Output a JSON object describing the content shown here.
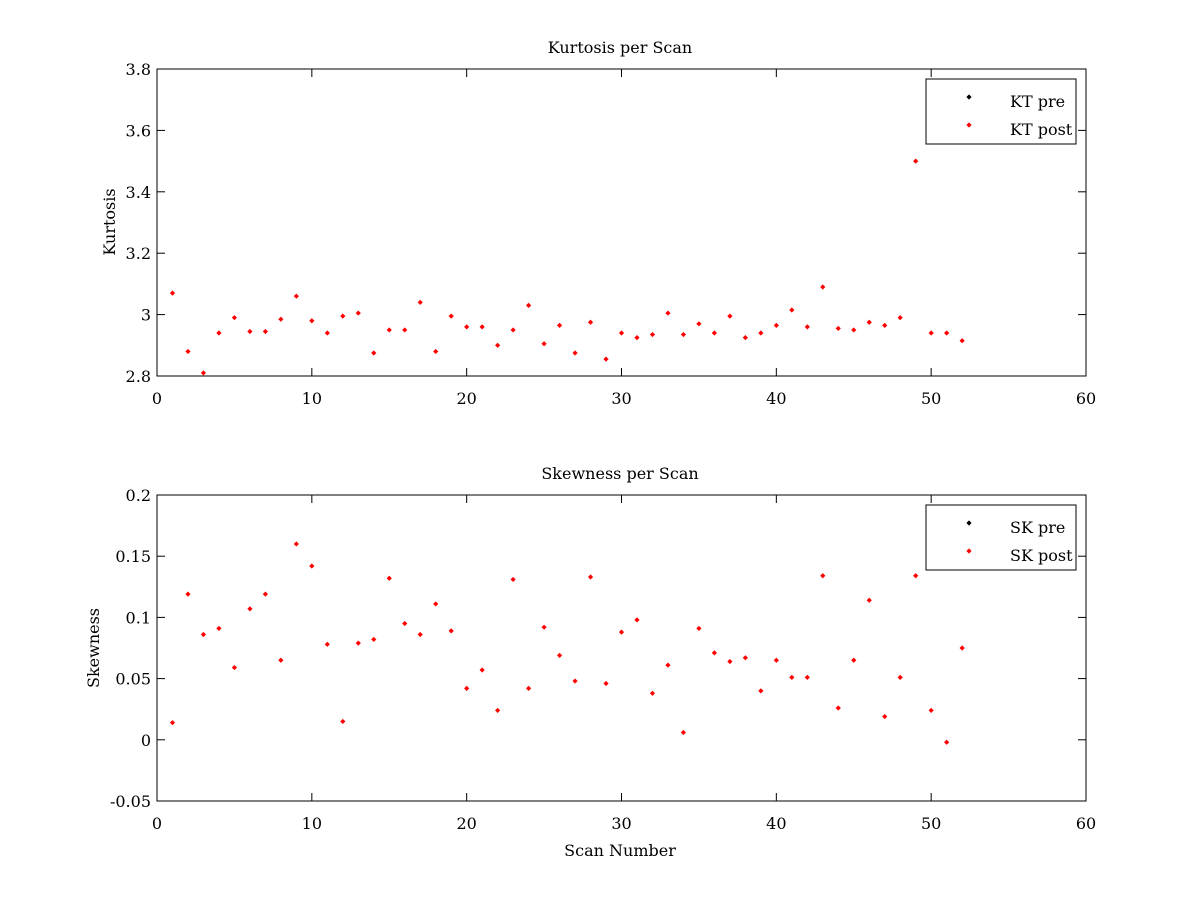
{
  "colors": {
    "pre": "#000000",
    "post": "#ff0000",
    "axes": "#000000",
    "background": "#ffffff"
  },
  "chart_data": [
    {
      "type": "scatter",
      "title": "Kurtosis per Scan",
      "xlabel": "",
      "ylabel": "Kurtosis",
      "xlim": [
        0,
        60
      ],
      "ylim": [
        2.8,
        3.8
      ],
      "xticks": [
        0,
        10,
        20,
        30,
        40,
        50,
        60
      ],
      "yticks": [
        2.8,
        3,
        3.2,
        3.4,
        3.6,
        3.8
      ],
      "xtick_labels": [
        "0",
        "10",
        "20",
        "30",
        "40",
        "50",
        "60"
      ],
      "ytick_labels": [
        "2.8",
        "3",
        "3.2",
        "3.4",
        "3.6",
        "3.8"
      ],
      "grid": false,
      "legend_position": "top-right",
      "legend": [
        "KT pre",
        "KT post"
      ],
      "series": [
        {
          "name": "KT pre",
          "x": [],
          "values": []
        },
        {
          "name": "KT post",
          "x": [
            1,
            2,
            3,
            4,
            5,
            6,
            7,
            8,
            9,
            10,
            11,
            12,
            13,
            14,
            15,
            16,
            17,
            18,
            19,
            20,
            21,
            22,
            23,
            24,
            25,
            26,
            27,
            28,
            29,
            30,
            31,
            32,
            33,
            34,
            35,
            36,
            37,
            38,
            39,
            40,
            41,
            42,
            43,
            44,
            45,
            46,
            47,
            48,
            49,
            50,
            51,
            52
          ],
          "values": [
            3.07,
            2.88,
            2.81,
            2.94,
            2.99,
            2.945,
            2.945,
            2.985,
            3.06,
            2.98,
            2.94,
            2.995,
            3.005,
            2.875,
            2.95,
            2.95,
            3.04,
            2.88,
            2.995,
            2.96,
            2.96,
            2.9,
            2.95,
            3.03,
            2.905,
            2.965,
            2.875,
            2.975,
            2.855,
            2.94,
            2.925,
            2.935,
            3.005,
            2.935,
            2.97,
            2.94,
            2.995,
            2.925,
            2.94,
            2.965,
            3.015,
            2.96,
            3.09,
            2.955,
            2.95,
            2.975,
            2.965,
            2.99,
            3.5,
            2.94,
            2.94,
            2.915
          ]
        }
      ]
    },
    {
      "type": "scatter",
      "title": "Skewness per Scan",
      "xlabel": "Scan Number",
      "ylabel": "Skewness",
      "xlim": [
        0,
        60
      ],
      "ylim": [
        -0.05,
        0.2
      ],
      "xticks": [
        0,
        10,
        20,
        30,
        40,
        50,
        60
      ],
      "yticks": [
        -0.05,
        0,
        0.05,
        0.1,
        0.15,
        0.2
      ],
      "xtick_labels": [
        "0",
        "10",
        "20",
        "30",
        "40",
        "50",
        "60"
      ],
      "ytick_labels": [
        "-0.05",
        "0",
        "0.05",
        "0.1",
        "0.15",
        "0.2"
      ],
      "grid": false,
      "legend_position": "top-right",
      "legend": [
        "SK pre",
        "SK post"
      ],
      "series": [
        {
          "name": "SK pre",
          "x": [],
          "values": []
        },
        {
          "name": "SK post",
          "x": [
            1,
            2,
            3,
            4,
            5,
            6,
            7,
            8,
            9,
            10,
            11,
            12,
            13,
            14,
            15,
            16,
            17,
            18,
            19,
            20,
            21,
            22,
            23,
            24,
            25,
            26,
            27,
            28,
            29,
            30,
            31,
            32,
            33,
            34,
            35,
            36,
            37,
            38,
            39,
            40,
            41,
            42,
            43,
            44,
            45,
            46,
            47,
            48,
            49,
            50,
            51,
            52
          ],
          "values": [
            0.014,
            0.119,
            0.086,
            0.091,
            0.059,
            0.107,
            0.119,
            0.065,
            0.16,
            0.142,
            0.078,
            0.015,
            0.079,
            0.082,
            0.132,
            0.095,
            0.086,
            0.111,
            0.089,
            0.042,
            0.057,
            0.024,
            0.131,
            0.042,
            0.092,
            0.069,
            0.048,
            0.133,
            0.046,
            0.088,
            0.098,
            0.038,
            0.061,
            0.006,
            0.091,
            0.071,
            0.064,
            0.067,
            0.04,
            0.065,
            0.051,
            0.051,
            0.134,
            0.026,
            0.065,
            0.114,
            0.019,
            0.051,
            0.134,
            0.024,
            -0.002,
            0.075
          ]
        }
      ]
    }
  ]
}
